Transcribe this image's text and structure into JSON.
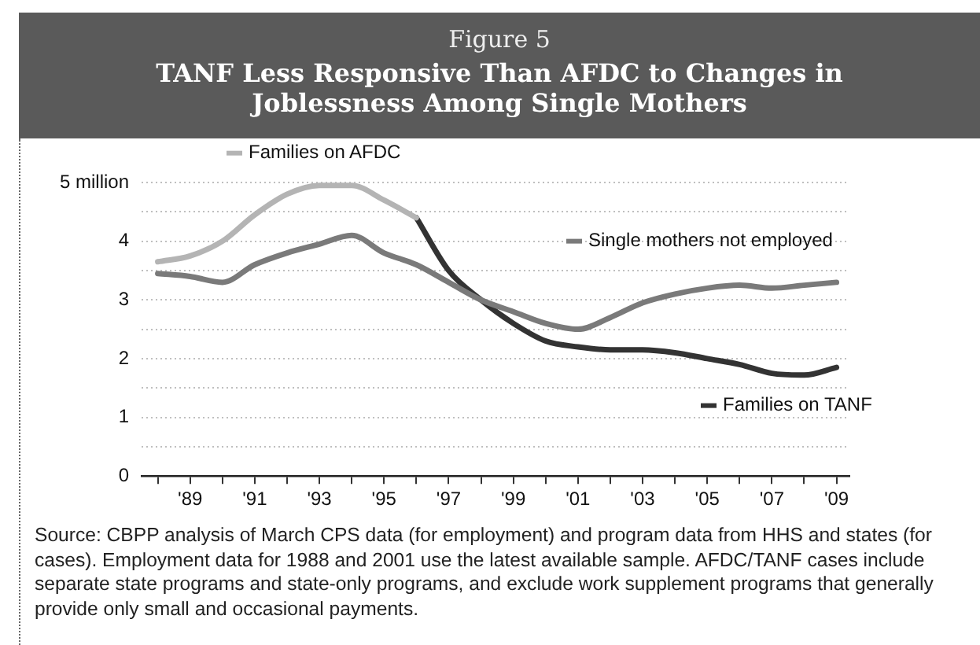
{
  "chart_data": {
    "type": "line",
    "subtitle": "Figure 5",
    "title": "TANF Less Responsive Than AFDC to Changes in Joblessness Among Single Mothers",
    "series": [
      {
        "name": "Families on AFDC",
        "color": "#b4b4b4",
        "x": [
          1988,
          1989,
          1990,
          1991,
          1992,
          1993,
          1994,
          1995,
          1996
        ],
        "values": [
          3.65,
          3.75,
          4.0,
          4.45,
          4.8,
          4.95,
          4.95,
          4.7,
          4.4
        ]
      },
      {
        "name": "Single mothers not employed",
        "color": "#7a7a7a",
        "x": [
          1988,
          1989,
          1990,
          1991,
          1992,
          1993,
          1994,
          1995,
          1996,
          1997,
          1998,
          1999,
          2000,
          2001,
          2002,
          2003,
          2004,
          2005,
          2006,
          2007,
          2008,
          2009
        ],
        "values": [
          3.45,
          3.4,
          3.3,
          3.6,
          3.8,
          3.95,
          4.1,
          3.8,
          3.6,
          3.3,
          3.0,
          2.8,
          2.6,
          2.5,
          2.7,
          2.95,
          3.1,
          3.2,
          3.25,
          3.2,
          3.25,
          3.3
        ]
      },
      {
        "name": "Families on TANF",
        "color": "#333333",
        "x": [
          1996,
          1997,
          1998,
          1999,
          2000,
          2001,
          2002,
          2003,
          2004,
          2005,
          2006,
          2007,
          2008,
          2009
        ],
        "values": [
          4.4,
          3.5,
          3.0,
          2.6,
          2.3,
          2.2,
          2.15,
          2.15,
          2.1,
          2.0,
          1.9,
          1.75,
          1.72,
          1.85
        ]
      }
    ],
    "xlim": [
      1987.5,
      2009.4
    ],
    "xticks": [
      {
        "value": 1988,
        "label": null
      },
      {
        "value": 1989,
        "label": "'89"
      },
      {
        "value": 1990,
        "label": null
      },
      {
        "value": 1991,
        "label": "'91"
      },
      {
        "value": 1992,
        "label": null
      },
      {
        "value": 1993,
        "label": "'93"
      },
      {
        "value": 1994,
        "label": null
      },
      {
        "value": 1995,
        "label": "'95"
      },
      {
        "value": 1996,
        "label": null
      },
      {
        "value": 1997,
        "label": "'97"
      },
      {
        "value": 1998,
        "label": null
      },
      {
        "value": 1999,
        "label": "'99"
      },
      {
        "value": 2000,
        "label": null
      },
      {
        "value": 2001,
        "label": "'01"
      },
      {
        "value": 2002,
        "label": null
      },
      {
        "value": 2003,
        "label": "'03"
      },
      {
        "value": 2004,
        "label": null
      },
      {
        "value": 2005,
        "label": "'05"
      },
      {
        "value": 2006,
        "label": null
      },
      {
        "value": 2007,
        "label": "'07"
      },
      {
        "value": 2008,
        "label": null
      },
      {
        "value": 2009,
        "label": "'09"
      }
    ],
    "ylim": [
      0,
      5
    ],
    "yticks": [
      0,
      {
        "value": 0.5,
        "label": null
      },
      1,
      {
        "value": 1.5,
        "label": null
      },
      2,
      {
        "value": 2.5,
        "label": null
      },
      3,
      {
        "value": 3.5,
        "label": null
      },
      4,
      {
        "value": 4.5,
        "label": null
      },
      {
        "value": 5,
        "label": "5 million"
      }
    ],
    "grid": "y",
    "legend": "top",
    "marker": "none",
    "line_style": "solid",
    "annotations": [
      "Source:  CBPP analysis of March CPS data (for employment) and program data from HHS and states (for cases). Employment data for 1988 and 2001 use the latest available sample.  AFDC/TANF cases include separate state programs and state-only programs, and exclude work supplement programs that generally provide only small and occasional payments."
    ]
  }
}
